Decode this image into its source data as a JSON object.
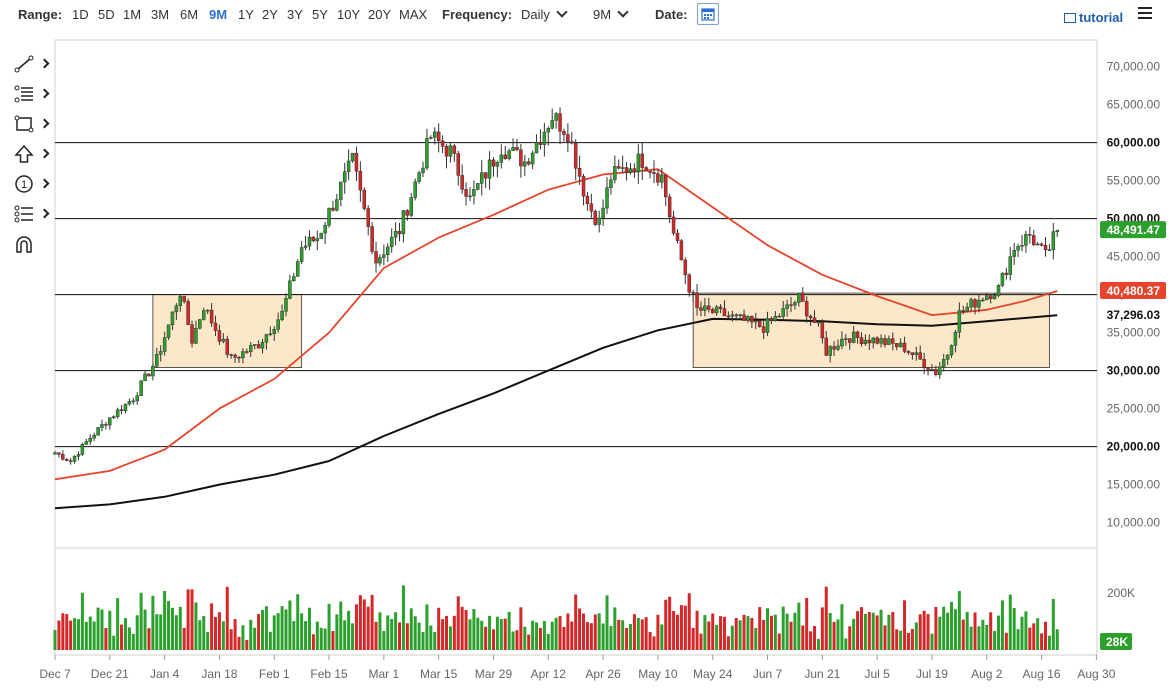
{
  "toolbar": {
    "range_label": "Range:",
    "ranges": [
      "1D",
      "5D",
      "1M",
      "3M",
      "6M",
      "9M",
      "1Y",
      "2Y",
      "3Y",
      "5Y",
      "10Y",
      "20Y",
      "MAX"
    ],
    "active_range": "9M",
    "frequency_label": "Frequency:",
    "frequency_value": "Daily",
    "period_value": "9M",
    "date_label": "Date:",
    "tutorial_label": "tutorial"
  },
  "tools": [
    "line-draw-icon",
    "fibonacci-icon",
    "rectangle-icon",
    "arrow-up-icon",
    "annotation-number-icon",
    "measure-icon",
    "magnet-icon"
  ],
  "colors": {
    "up": "#2ca02c",
    "down": "#d62728",
    "ma_fast": "#e8442c",
    "ma_slow": "#111111",
    "box_fill": "#fbe3bf",
    "last_price": "#2ca02c"
  },
  "chart_data": {
    "type": "candlestick",
    "price_axis": {
      "ticks": [
        10000,
        15000,
        20000,
        25000,
        30000,
        35000,
        40000,
        45000,
        50000,
        55000,
        60000,
        65000,
        70000
      ],
      "tick_labels": [
        "10,000.00",
        "15,000.00",
        "20,000.00",
        "25,000.00",
        "30,000.00",
        "35,000.00",
        "40,000.00",
        "45,000.00",
        "50,000.00",
        "55,000.00",
        "60,000.00",
        "65,000.00",
        "70,000.00"
      ]
    },
    "date_axis": {
      "ticks": [
        "Dec 7",
        "Dec 21",
        "Jan 4",
        "Jan 18",
        "Feb 1",
        "Feb 15",
        "Mar 1",
        "Mar 15",
        "Mar 29",
        "Apr 12",
        "Apr 26",
        "May 10",
        "May 24",
        "Jun 7",
        "Jun 21",
        "Jul 5",
        "Jul 19",
        "Aug 2",
        "Aug 16",
        "Aug 30"
      ]
    },
    "volume_axis": {
      "ticks": [
        200000
      ],
      "tick_labels": [
        "200K"
      ]
    },
    "horizontal_lines": [
      {
        "value": 60000,
        "label": "60,000.00"
      },
      {
        "value": 50000,
        "label": "50,000.00"
      },
      {
        "value": 40000,
        "label": ""
      },
      {
        "value": 30000,
        "label": "30,000.00"
      },
      {
        "value": 20000,
        "label": "20,000.00"
      }
    ],
    "rectangles": [
      {
        "from": "2021-01-01",
        "to": "2021-02-08",
        "low": 30400,
        "high": 40000
      },
      {
        "from": "2021-05-19",
        "to": "2021-08-18",
        "low": 30400,
        "high": 40200
      }
    ],
    "last_price": {
      "value": 48491.47,
      "label": "48,491.47"
    },
    "ma_fast": {
      "last": 40480.37,
      "label": "40,480.37",
      "points": [
        [
          "2020-12-07",
          15700
        ],
        [
          "2020-12-21",
          16800
        ],
        [
          "2021-01-04",
          19600
        ],
        [
          "2021-01-18",
          25000
        ],
        [
          "2021-02-01",
          28900
        ],
        [
          "2021-02-15",
          35000
        ],
        [
          "2021-03-01",
          43500
        ],
        [
          "2021-03-15",
          47500
        ],
        [
          "2021-03-29",
          50500
        ],
        [
          "2021-04-12",
          53800
        ],
        [
          "2021-04-26",
          55800
        ],
        [
          "2021-05-10",
          56500
        ],
        [
          "2021-05-24",
          51500
        ],
        [
          "2021-06-07",
          46500
        ],
        [
          "2021-06-21",
          42600
        ],
        [
          "2021-07-05",
          39800
        ],
        [
          "2021-07-19",
          37300
        ],
        [
          "2021-08-02",
          38000
        ],
        [
          "2021-08-12",
          39200
        ],
        [
          "2021-08-20",
          40480
        ]
      ]
    },
    "ma_slow": {
      "last": 37296.03,
      "label": "37,296.03",
      "points": [
        [
          "2020-12-07",
          11900
        ],
        [
          "2020-12-21",
          12400
        ],
        [
          "2021-01-04",
          13400
        ],
        [
          "2021-01-18",
          15000
        ],
        [
          "2021-02-01",
          16300
        ],
        [
          "2021-02-15",
          18100
        ],
        [
          "2021-03-01",
          21400
        ],
        [
          "2021-03-15",
          24300
        ],
        [
          "2021-03-29",
          27000
        ],
        [
          "2021-04-12",
          30000
        ],
        [
          "2021-04-26",
          33000
        ],
        [
          "2021-05-10",
          35300
        ],
        [
          "2021-05-24",
          36800
        ],
        [
          "2021-06-07",
          36700
        ],
        [
          "2021-06-21",
          36500
        ],
        [
          "2021-07-05",
          36100
        ],
        [
          "2021-07-19",
          35900
        ],
        [
          "2021-08-02",
          36500
        ],
        [
          "2021-08-20",
          37296
        ]
      ]
    },
    "volume_last": {
      "value": 28000,
      "label": "28K"
    },
    "candle_keypoints": [
      [
        "2020-12-07",
        19200
      ],
      [
        "2020-12-11",
        18100
      ],
      [
        "2020-12-16",
        21200
      ],
      [
        "2020-12-21",
        23800
      ],
      [
        "2020-12-27",
        26400
      ],
      [
        "2021-01-02",
        31500
      ],
      [
        "2021-01-08",
        40400
      ],
      [
        "2021-01-11",
        34000
      ],
      [
        "2021-01-14",
        38500
      ],
      [
        "2021-01-21",
        31500
      ],
      [
        "2021-01-28",
        33500
      ],
      [
        "2021-02-03",
        37500
      ],
      [
        "2021-02-08",
        46200
      ],
      [
        "2021-02-12",
        47500
      ],
      [
        "2021-02-21",
        57500
      ],
      [
        "2021-02-27",
        44500
      ],
      [
        "2021-03-05",
        48500
      ],
      [
        "2021-03-13",
        60800
      ],
      [
        "2021-03-18",
        58800
      ],
      [
        "2021-03-23",
        52500
      ],
      [
        "2021-03-31",
        59500
      ],
      [
        "2021-04-06",
        57500
      ],
      [
        "2021-04-13",
        63500
      ],
      [
        "2021-04-17",
        61500
      ],
      [
        "2021-04-22",
        52000
      ],
      [
        "2021-04-25",
        49500
      ],
      [
        "2021-04-28",
        55500
      ],
      [
        "2021-05-06",
        57800
      ],
      [
        "2021-05-11",
        55500
      ],
      [
        "2021-05-14",
        48000
      ],
      [
        "2021-05-18",
        41000
      ],
      [
        "2021-05-20",
        38000
      ],
      [
        "2021-05-26",
        37500
      ],
      [
        "2021-06-01",
        36500
      ],
      [
        "2021-06-06",
        35700
      ],
      [
        "2021-06-10",
        37300
      ],
      [
        "2021-06-15",
        39500
      ],
      [
        "2021-06-20",
        35600
      ],
      [
        "2021-06-22",
        32500
      ],
      [
        "2021-06-27",
        34500
      ],
      [
        "2021-07-05",
        34000
      ],
      [
        "2021-07-12",
        33000
      ],
      [
        "2021-07-20",
        29800
      ],
      [
        "2021-07-23",
        32300
      ],
      [
        "2021-07-26",
        37500
      ],
      [
        "2021-08-01",
        39800
      ],
      [
        "2021-08-05",
        40800
      ],
      [
        "2021-08-09",
        46300
      ],
      [
        "2021-08-13",
        47800
      ],
      [
        "2021-08-17",
        45000
      ],
      [
        "2021-08-20",
        48491
      ]
    ]
  }
}
